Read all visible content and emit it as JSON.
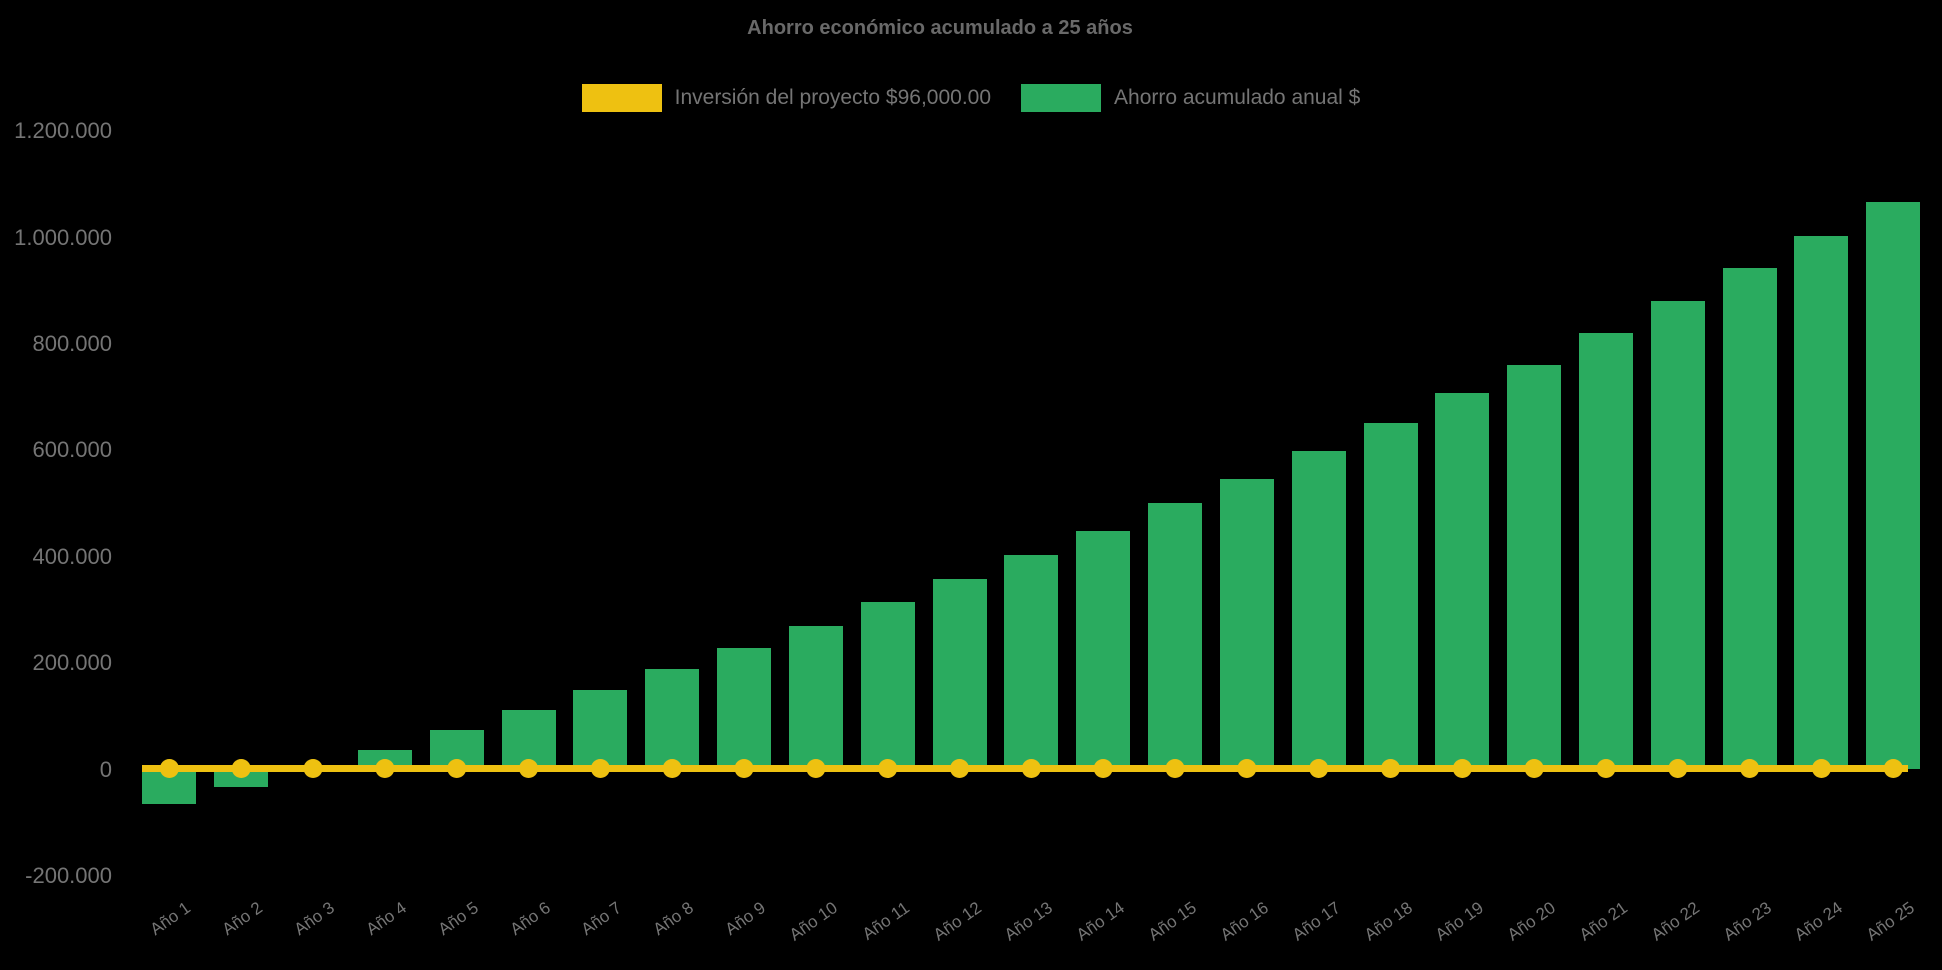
{
  "title": "Ahorro económico acumulado a 25 años",
  "colors": {
    "background": "#000000",
    "bar_green": "#2aab5f",
    "line_yellow": "#eec111",
    "tick_text": "#757575",
    "title_text": "#696969"
  },
  "chart_data": {
    "type": "bar",
    "title": "Ahorro económico acumulado a 25 años",
    "categories": [
      "Año 1",
      "Año 2",
      "Año 3",
      "Año 4",
      "Año 5",
      "Año 6",
      "Año 7",
      "Año 8",
      "Año 9",
      "Año 10",
      "Año 11",
      "Año 12",
      "Año 13",
      "Año 14",
      "Año 15",
      "Año 16",
      "Año 17",
      "Año 18",
      "Año 19",
      "Año 20",
      "Año 21",
      "Año 22",
      "Año 23",
      "Año 24",
      "Año 25"
    ],
    "series": [
      {
        "name": "Inversión del proyecto $96,000.00",
        "type": "line",
        "color": "#eec111",
        "values": [
          0,
          0,
          0,
          0,
          0,
          0,
          0,
          0,
          0,
          0,
          0,
          0,
          0,
          0,
          0,
          0,
          0,
          0,
          0,
          0,
          0,
          0,
          0,
          0,
          0
        ]
      },
      {
        "name": "Ahorro acumulado anual $",
        "type": "bar",
        "color": "#2aab5f",
        "values": [
          -64000,
          -32000,
          1000,
          37000,
          74000,
          111000,
          150000,
          188000,
          229000,
          270000,
          314000,
          359000,
          404000,
          449000,
          501000,
          546000,
          599000,
          652000,
          708000,
          761000,
          821000,
          881000,
          943000,
          1003000,
          1067000
        ]
      }
    ],
    "xlabel": "",
    "ylabel": "",
    "ylim": [
      -200000,
      1200000
    ],
    "ytick_interval": 200000,
    "ytick_labels": [
      "-200.000",
      "0",
      "200.000",
      "400.000",
      "600.000",
      "800.000",
      "1.000.000",
      "1.200.000"
    ],
    "grid": false,
    "legend_position": "top",
    "x_label_rotation_deg": -35
  }
}
